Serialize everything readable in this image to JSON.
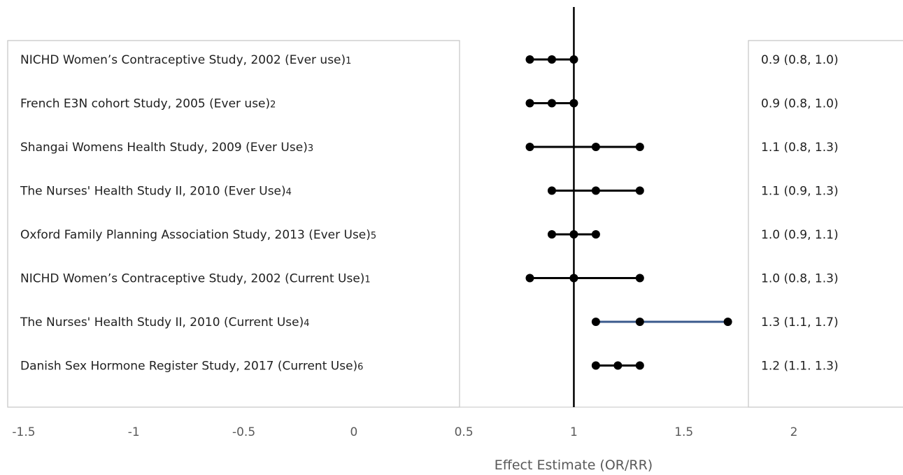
{
  "chart_data": {
    "type": "forest",
    "xlabel": "Effect Estimate (OR/RR)",
    "xlim": [
      -1.5,
      2
    ],
    "xticks": [
      -1.5,
      -1,
      -0.5,
      0,
      0.5,
      1,
      1.5,
      2
    ],
    "xtick_labels": [
      "-1.5",
      "-1",
      "-0.5",
      "0",
      "0.5",
      "1",
      "1.5",
      "2"
    ],
    "reference_line": 1,
    "rows": [
      {
        "study": "NICHD Women’s Contraceptive Study, 2002 (Ever use)",
        "ref": "1",
        "lower": 0.8,
        "estimate": 0.9,
        "upper": 1.0,
        "ci_text": "0.9 (0.8, 1.0)",
        "line_color": "#000000"
      },
      {
        "study": "French E3N cohort Study, 2005  (Ever use)",
        "ref": "2",
        "lower": 0.8,
        "estimate": 0.9,
        "upper": 1.0,
        "ci_text": "0.9 (0.8, 1.0)",
        "line_color": "#000000"
      },
      {
        "study": "Shangai Womens Health Study, 2009 (Ever Use)",
        "ref": "3",
        "lower": 0.8,
        "estimate": 1.1,
        "upper": 1.3,
        "ci_text": "1.1 (0.8, 1.3)",
        "line_color": "#000000"
      },
      {
        "study": "The Nurses' Health Study II, 2010 (Ever Use)",
        "ref": "4",
        "lower": 0.9,
        "estimate": 1.1,
        "upper": 1.3,
        "ci_text": "1.1 (0.9, 1.3)",
        "line_color": "#000000"
      },
      {
        "study": "Oxford Family Planning Association Study, 2013 (Ever Use)",
        "ref": "5",
        "lower": 0.9,
        "estimate": 1.0,
        "upper": 1.1,
        "ci_text": "1.0 (0.9, 1.1)",
        "line_color": "#000000"
      },
      {
        "study": "NICHD Women’s Contraceptive Study, 2002  (Current Use)",
        "ref": "1",
        "lower": 0.8,
        "estimate": 1.0,
        "upper": 1.3,
        "ci_text": "1.0 (0.8, 1.3)",
        "line_color": "#000000"
      },
      {
        "study": "The Nurses' Health Study II, 2010  (Current Use)",
        "ref": "4",
        "lower": 1.1,
        "estimate": 1.3,
        "upper": 1.7,
        "ci_text": "1.3 (1.1, 1.7)",
        "line_color": "#3a5a8c"
      },
      {
        "study": "Danish Sex Hormone Register Study, 2017 (Current Use)",
        "ref": "6",
        "lower": 1.1,
        "estimate": 1.2,
        "upper": 1.3,
        "ci_text": "1.2 (1.1. 1.3)",
        "line_color": "#000000"
      }
    ],
    "grid": false
  }
}
